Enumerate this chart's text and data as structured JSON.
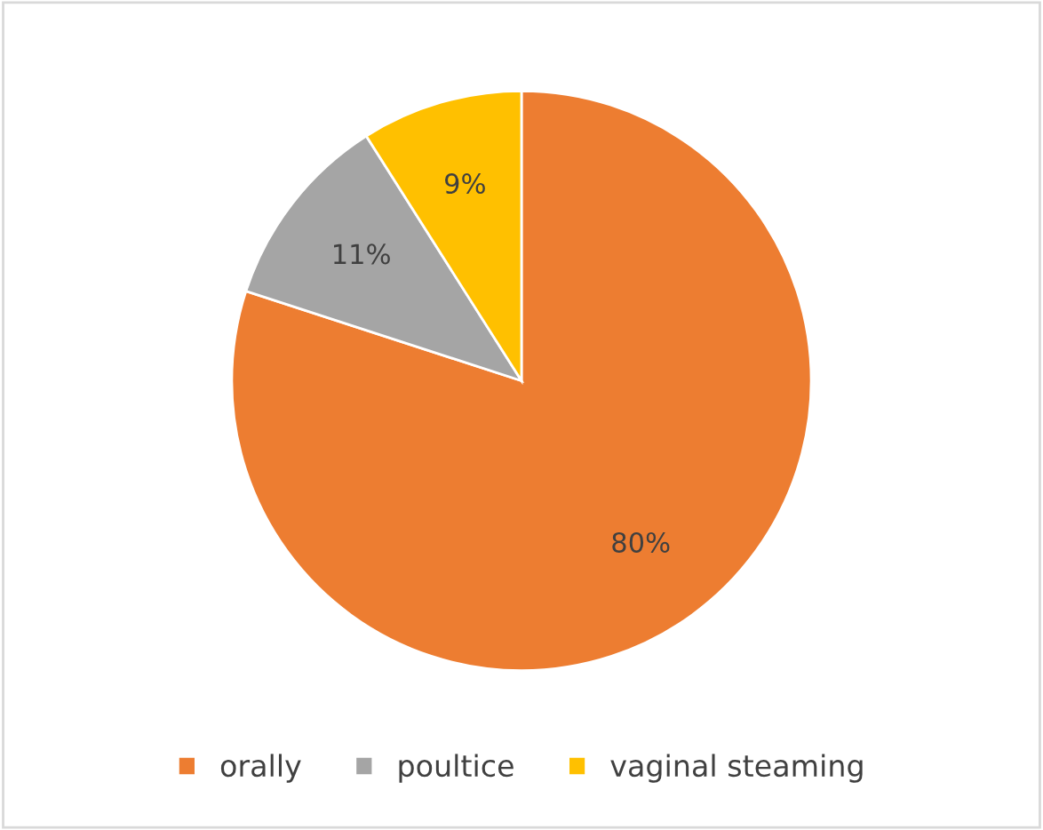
{
  "chart_data": {
    "type": "pie",
    "categories": [
      "orally",
      "poultice",
      "vaginal steaming"
    ],
    "values": [
      80,
      11,
      9
    ],
    "colors": [
      "#ed7d31",
      "#a5a5a5",
      "#ffc000"
    ],
    "value_labels": [
      "80%",
      "11%",
      "9%"
    ],
    "legend": "bottom"
  }
}
